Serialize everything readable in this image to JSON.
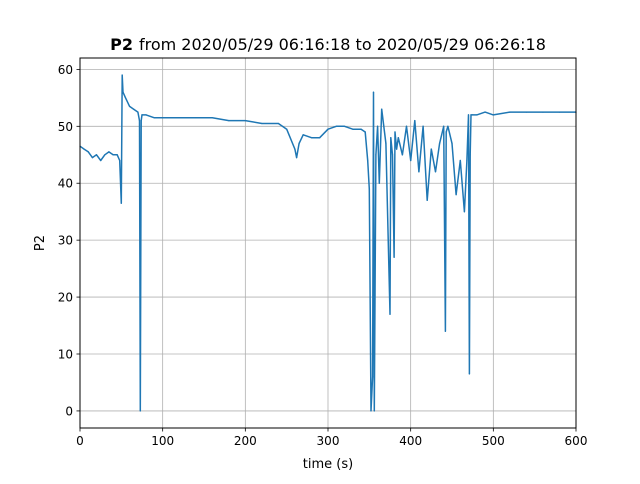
{
  "chart_data": {
    "type": "line",
    "title": {
      "bold": "P2",
      "rest": "from 2020/05/29 06:16:18 to 2020/05/29 06:26:18"
    },
    "xlabel": "time (s)",
    "ylabel": "P2",
    "xlim": [
      0,
      600
    ],
    "ylim": [
      -3,
      62
    ],
    "xticks": [
      0,
      100,
      200,
      300,
      400,
      500,
      600
    ],
    "yticks": [
      0,
      10,
      20,
      30,
      40,
      50,
      60
    ],
    "grid": true,
    "legend": "none",
    "series_color": "#1f77b4",
    "series": [
      {
        "x": [
          0,
          5,
          10,
          15,
          20,
          25,
          30,
          35,
          40,
          45,
          48,
          50,
          51,
          52,
          55,
          60,
          65,
          70,
          72,
          73,
          74,
          75,
          80,
          90,
          100,
          120,
          140,
          160,
          180,
          200,
          220,
          240,
          250,
          260,
          262,
          265,
          270,
          280,
          290,
          300,
          310,
          320,
          330,
          340,
          345,
          348,
          350,
          352,
          354,
          355,
          356,
          358,
          360,
          362,
          365,
          370,
          375,
          376,
          378,
          380,
          381,
          383,
          385,
          390,
          395,
          400,
          405,
          410,
          415,
          420,
          425,
          430,
          435,
          440,
          442,
          443,
          445,
          450,
          455,
          460,
          465,
          468,
          470,
          471,
          472,
          473,
          475,
          480,
          490,
          500,
          520,
          540,
          560,
          580,
          600
        ],
        "y": [
          46.5,
          46,
          45.5,
          44.5,
          45,
          44,
          45,
          45.5,
          45,
          45,
          44,
          36.5,
          59,
          56,
          55,
          53.5,
          53,
          52.5,
          51,
          0,
          51,
          52,
          52,
          51.5,
          51.5,
          51.5,
          51.5,
          51.5,
          51,
          51,
          50.5,
          50.5,
          49.5,
          46,
          44.5,
          47,
          48.5,
          48,
          48,
          49.5,
          50,
          50,
          49.5,
          49.5,
          49,
          44,
          39,
          0,
          6,
          56,
          0,
          45,
          50,
          40,
          53,
          47,
          17,
          48,
          45,
          27,
          49,
          46,
          48,
          45,
          50,
          44,
          51,
          42,
          50,
          37,
          46,
          42,
          47,
          50,
          14,
          49,
          50,
          47,
          38,
          44,
          35,
          44,
          52,
          6.5,
          45,
          52,
          52,
          52,
          52.5,
          52,
          52.5,
          52.5,
          52.5,
          52.5,
          52.5
        ]
      }
    ]
  }
}
